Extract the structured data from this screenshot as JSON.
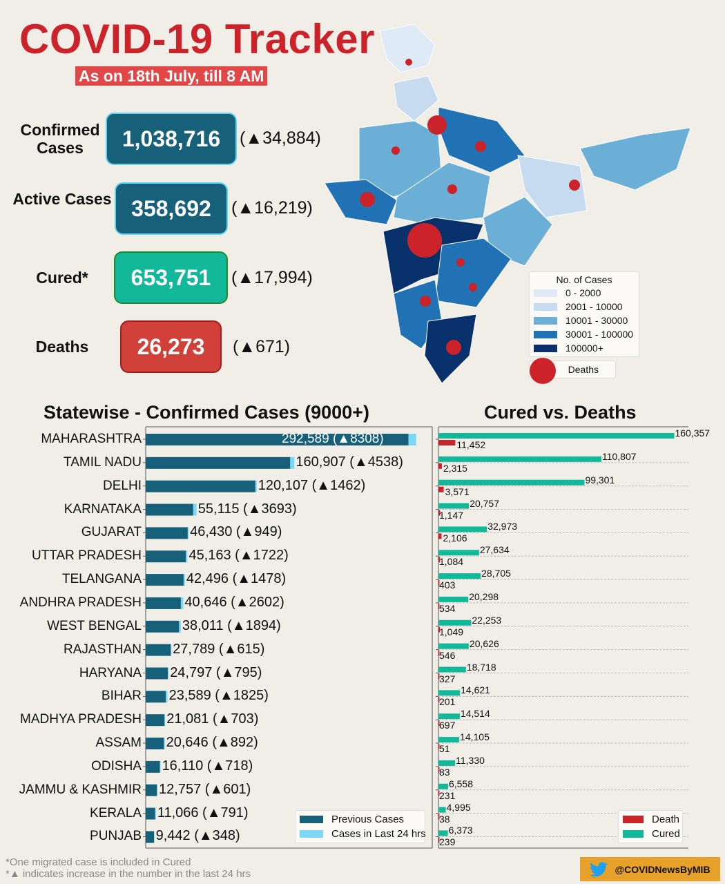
{
  "header": {
    "title": "COVID-19 Tracker",
    "subtitle": "As on 18th July, till 8 AM"
  },
  "stats": [
    {
      "label": "Confirmed Cases",
      "value": "1,038,716",
      "change": "(▲34,884)",
      "color": "#16607a"
    },
    {
      "label": "Active Cases",
      "value": "358,692",
      "change": "(▲16,219)",
      "color": "#16607a"
    },
    {
      "label": "Cured*",
      "value": "653,751",
      "change": "(▲17,994)",
      "color": "#12b89a"
    },
    {
      "label": "Deaths",
      "value": "26,273",
      "change": "(▲671)",
      "color": "#d2403a"
    }
  ],
  "map": {
    "legend_title": "No. of Cases",
    "legend": [
      {
        "label": "0 - 2000",
        "color": "#deebf7"
      },
      {
        "label": "2001 - 10000",
        "color": "#c6dbef"
      },
      {
        "label": "10001 - 30000",
        "color": "#6baed6"
      },
      {
        "label": "30001 - 100000",
        "color": "#2171b5"
      },
      {
        "label": "100000+",
        "color": "#08306b"
      }
    ],
    "deaths_label": "Deaths",
    "death_color": "#cc2229"
  },
  "chart_data": [
    {
      "type": "bar",
      "orientation": "horizontal",
      "stacked": true,
      "title": "Statewise - Confirmed Cases (9000+)",
      "categories": [
        "MAHARASHTRA",
        "TAMIL NADU",
        "DELHI",
        "KARNATAKA",
        "GUJARAT",
        "UTTAR PRADESH",
        "TELANGANA",
        "ANDHRA PRADESH",
        "WEST BENGAL",
        "RAJASTHAN",
        "HARYANA",
        "BIHAR",
        "MADHYA PRADESH",
        "ASSAM",
        "ODISHA",
        "JAMMU & KASHMIR",
        "KERALA",
        "PUNJAB"
      ],
      "totals": [
        292589,
        160907,
        120107,
        55115,
        46430,
        45163,
        42496,
        40646,
        38011,
        27789,
        24797,
        23589,
        21081,
        20646,
        16110,
        12757,
        11066,
        9442
      ],
      "increase": [
        8308,
        4538,
        1462,
        3693,
        949,
        1722,
        1478,
        2602,
        1894,
        615,
        795,
        1825,
        703,
        892,
        718,
        601,
        791,
        348
      ],
      "data_labels": [
        "292,589 (▲8308)",
        "160,907 (▲4538)",
        "120,107 (▲1462)",
        "55,115 (▲3693)",
        "46,430 (▲949)",
        "45,163 (▲1722)",
        "42,496 (▲1478)",
        "40,646 (▲2602)",
        "38,011 (▲1894)",
        "27,789 (▲615)",
        "24,797 (▲795)",
        "23,589 (▲1825)",
        "21,081 (▲703)",
        "20,646 (▲892)",
        "16,110 (▲718)",
        "12,757 (▲601)",
        "11,066 (▲791)",
        "9,442 (▲348)"
      ],
      "series": [
        {
          "name": "Previous Cases",
          "color": "#16607a"
        },
        {
          "name": "Cases in Last 24 hrs",
          "color": "#7dd8f5"
        }
      ],
      "xlim": [
        0,
        310000
      ],
      "legend_position": "bottom-right"
    },
    {
      "type": "bar",
      "orientation": "horizontal",
      "title": "Cured vs. Deaths",
      "categories": [
        "MAHARASHTRA",
        "TAMIL NADU",
        "DELHI",
        "KARNATAKA",
        "GUJARAT",
        "UTTAR PRADESH",
        "TELANGANA",
        "ANDHRA PRADESH",
        "WEST BENGAL",
        "RAJASTHAN",
        "HARYANA",
        "BIHAR",
        "MADHYA PRADESH",
        "ASSAM",
        "ODISHA",
        "JAMMU & KASHMIR",
        "KERALA",
        "PUNJAB"
      ],
      "series": [
        {
          "name": "Cured",
          "color": "#12b89a",
          "values": [
            160357,
            110807,
            99301,
            20757,
            32973,
            27634,
            28705,
            20298,
            22253,
            20626,
            18718,
            14621,
            14514,
            14105,
            11330,
            6558,
            4995,
            6373
          ],
          "labels": [
            "160,357",
            "110,807",
            "99,301",
            "20,757",
            "32,973",
            "27,634",
            "28,705",
            "20,298",
            "22,253",
            "20,626",
            "18,718",
            "14,621",
            "14,514",
            "14,105",
            "11,330",
            "6,558",
            "4,995",
            "6,373"
          ]
        },
        {
          "name": "Death",
          "color": "#cc2229",
          "values": [
            11452,
            2315,
            3571,
            1147,
            2106,
            1084,
            403,
            534,
            1049,
            546,
            327,
            201,
            697,
            51,
            83,
            231,
            38,
            239
          ],
          "labels": [
            "11,452",
            "2,315",
            "3,571",
            "1,147",
            "2,106",
            "1,084",
            "403",
            "534",
            "1,049",
            "546",
            "327",
            "201",
            "697",
            "51",
            "83",
            "231",
            "38",
            "239"
          ]
        }
      ],
      "xlim": [
        0,
        170000
      ],
      "grid": true,
      "legend_position": "bottom-right"
    }
  ],
  "footer": {
    "note1": "*One migrated case is included in Cured",
    "note2": "*▲ indicates increase in the number in the last 24 hrs",
    "twitter": "@COVIDNewsByMIB"
  }
}
